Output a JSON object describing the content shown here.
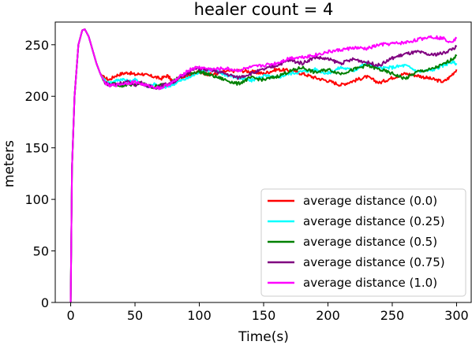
{
  "chart_data": {
    "type": "line",
    "title": "healer count = 4",
    "xlabel": "Time(s)",
    "ylabel": "meters",
    "xlim": [
      -12,
      312
    ],
    "ylim": [
      0,
      272
    ],
    "xticks": [
      0,
      50,
      100,
      150,
      200,
      250,
      300
    ],
    "yticks": [
      0,
      50,
      100,
      150,
      200,
      250
    ],
    "grid": false,
    "legend_position": "lower-right",
    "series": [
      {
        "name": "average distance (0.0)",
        "color": "#ff0000",
        "x": [
          0,
          1,
          3,
          6,
          9,
          11,
          14,
          17,
          20,
          23,
          26,
          30,
          35,
          40,
          45,
          50,
          55,
          60,
          65,
          70,
          75,
          80,
          85,
          90,
          95,
          100,
          110,
          120,
          130,
          140,
          150,
          160,
          170,
          180,
          190,
          200,
          210,
          220,
          230,
          240,
          250,
          260,
          270,
          280,
          290,
          295,
          300
        ],
        "y": [
          0,
          130,
          200,
          250,
          264,
          265,
          258,
          245,
          232,
          222,
          218,
          216,
          220,
          222,
          223,
          221,
          222,
          220,
          219,
          217,
          220,
          214,
          218,
          220,
          222,
          223,
          221,
          224,
          225,
          224,
          222,
          226,
          225,
          222,
          218,
          215,
          211,
          215,
          219,
          213,
          218,
          222,
          220,
          217,
          214,
          219,
          226
        ]
      },
      {
        "name": "average distance (0.25)",
        "color": "#00ffff",
        "x": [
          0,
          1,
          3,
          6,
          9,
          11,
          14,
          17,
          20,
          23,
          26,
          30,
          35,
          40,
          45,
          50,
          55,
          60,
          65,
          70,
          75,
          80,
          85,
          90,
          95,
          100,
          110,
          120,
          130,
          140,
          150,
          160,
          170,
          180,
          190,
          200,
          210,
          220,
          230,
          240,
          250,
          260,
          270,
          280,
          290,
          295,
          300
        ],
        "y": [
          0,
          130,
          200,
          250,
          264,
          265,
          258,
          245,
          232,
          222,
          216,
          213,
          215,
          217,
          214,
          216,
          213,
          210,
          212,
          208,
          209,
          212,
          215,
          217,
          220,
          224,
          226,
          221,
          218,
          215,
          220,
          218,
          222,
          224,
          226,
          222,
          228,
          225,
          232,
          227,
          228,
          230,
          224,
          225,
          230,
          233,
          232
        ]
      },
      {
        "name": "average distance (0.5)",
        "color": "#008000",
        "x": [
          0,
          1,
          3,
          6,
          9,
          11,
          14,
          17,
          20,
          23,
          26,
          30,
          35,
          40,
          45,
          50,
          55,
          60,
          65,
          70,
          75,
          80,
          85,
          90,
          95,
          100,
          110,
          120,
          130,
          140,
          150,
          160,
          170,
          180,
          190,
          200,
          210,
          220,
          230,
          240,
          250,
          260,
          270,
          280,
          290,
          295,
          300
        ],
        "y": [
          0,
          130,
          200,
          250,
          264,
          265,
          258,
          245,
          232,
          222,
          214,
          211,
          212,
          210,
          212,
          211,
          213,
          210,
          209,
          211,
          212,
          215,
          219,
          221,
          223,
          224,
          220,
          216,
          212,
          218,
          216,
          219,
          224,
          228,
          223,
          226,
          222,
          226,
          230,
          226,
          222,
          217,
          224,
          226,
          231,
          235,
          239
        ]
      },
      {
        "name": "average distance (0.75)",
        "color": "#800080",
        "x": [
          0,
          1,
          3,
          6,
          9,
          11,
          14,
          17,
          20,
          23,
          26,
          30,
          35,
          40,
          45,
          50,
          55,
          60,
          65,
          70,
          75,
          80,
          85,
          90,
          95,
          100,
          110,
          120,
          130,
          140,
          150,
          160,
          170,
          180,
          190,
          200,
          210,
          220,
          230,
          240,
          250,
          260,
          270,
          280,
          290,
          295,
          300
        ],
        "y": [
          0,
          130,
          200,
          250,
          264,
          265,
          258,
          245,
          232,
          222,
          214,
          211,
          212,
          213,
          214,
          211,
          213,
          210,
          208,
          210,
          212,
          214,
          218,
          222,
          226,
          227,
          225,
          222,
          218,
          222,
          226,
          230,
          235,
          232,
          238,
          236,
          232,
          236,
          233,
          230,
          237,
          241,
          243,
          240,
          242,
          245,
          248
        ]
      },
      {
        "name": "average distance (1.0)",
        "color": "#ff00ff",
        "x": [
          0,
          1,
          3,
          6,
          9,
          11,
          14,
          17,
          20,
          23,
          26,
          30,
          35,
          40,
          45,
          50,
          55,
          60,
          65,
          70,
          75,
          80,
          85,
          90,
          95,
          100,
          110,
          120,
          130,
          140,
          150,
          160,
          170,
          180,
          190,
          200,
          210,
          220,
          230,
          240,
          250,
          260,
          270,
          280,
          290,
          295,
          300
        ],
        "y": [
          0,
          130,
          200,
          250,
          264,
          265,
          258,
          245,
          232,
          222,
          214,
          210,
          211,
          212,
          213,
          214,
          212,
          210,
          209,
          208,
          211,
          214,
          219,
          224,
          227,
          228,
          226,
          227,
          225,
          228,
          230,
          232,
          237,
          238,
          240,
          243,
          245,
          247,
          246,
          250,
          251,
          252,
          255,
          258,
          256,
          253,
          256
        ]
      }
    ]
  }
}
